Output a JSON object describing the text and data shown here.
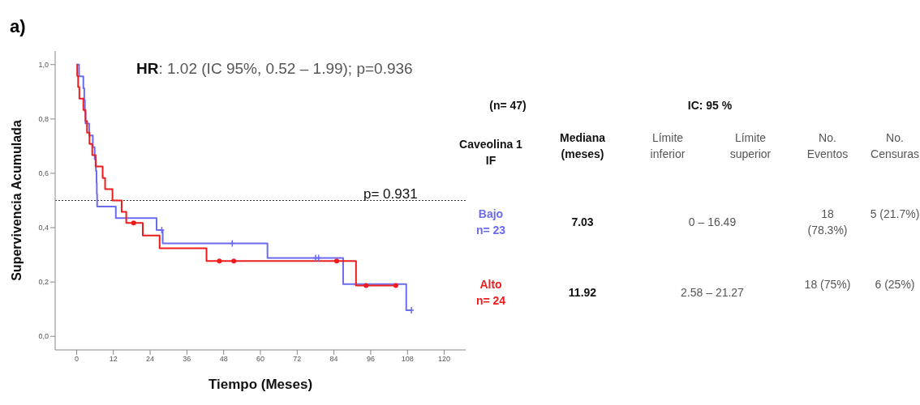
{
  "chart_data": {
    "type": "step",
    "xlabel": "Tiempo (Meses)",
    "ylabel": "Supervivencia Acumulada",
    "annotations": [
      "a)",
      "HR: 1.02 (IC 95%, 0.52 – 1.99); p=0.936",
      "(n= 47)",
      "IC: 95 %",
      "Caveolina 1 IF",
      "Mediana (meses)",
      "Límite inferior",
      "Límite superior",
      "No. Eventos",
      "No. Censuras",
      "n= 23",
      "7.03",
      "0 – 16.49",
      "18 (78.3%)",
      "5 (21.7%)",
      "n= 24",
      "11.92",
      "2.58 – 21.27",
      "18 (75%)",
      "6 (25%)",
      "p= 0.931"
    ],
    "xlim": [
      -7,
      127
    ],
    "xticks": [
      0,
      12,
      24,
      36,
      48,
      60,
      72,
      84,
      96,
      108,
      120
    ],
    "ylim": [
      -0.05,
      1.05
    ],
    "yticks": [
      {
        "value": 0,
        "label": "0,0"
      },
      {
        "value": 0.2,
        "label": "0,2"
      },
      {
        "value": 0.4,
        "label": "0,4"
      },
      {
        "value": 0.6,
        "label": "0,6"
      },
      {
        "value": 0.8,
        "label": "0,8"
      },
      {
        "value": 1,
        "label": "1,0"
      }
    ],
    "ref_lines": [
      {
        "axis": "y",
        "value": 0.5,
        "line_style": "dotted",
        "color": "#333333"
      }
    ],
    "grid": false,
    "legend": false,
    "series": [
      {
        "name": "Bajo",
        "color": "#6b6bf0",
        "x": [
          0,
          0.8,
          2.2,
          2.5,
          2.7,
          2.9,
          4.1,
          5.3,
          5.9,
          6.3,
          6.5,
          6.6,
          6.7,
          12.8,
          26.1,
          28.1,
          62.3,
          87.0,
          107.6,
          109.3
        ],
        "values": [
          1,
          0.957,
          0.913,
          0.87,
          0.826,
          0.783,
          0.739,
          0.696,
          0.652,
          0.609,
          0.565,
          0.522,
          0.478,
          0.435,
          0.391,
          0.342,
          0.288,
          0.192,
          0.096,
          0.096
        ]
      },
      {
        "name": "Alto",
        "color": "#ee1c1c",
        "x": [
          0,
          0.2,
          0.5,
          0.9,
          2.2,
          2.9,
          3.4,
          4.2,
          5.1,
          6.2,
          8.5,
          9.3,
          11.7,
          14.7,
          16.2,
          21.6,
          27.1,
          42.4,
          91.2,
          104.2
        ],
        "values": [
          1,
          0.958,
          0.917,
          0.875,
          0.833,
          0.792,
          0.75,
          0.708,
          0.667,
          0.625,
          0.583,
          0.542,
          0.5,
          0.458,
          0.417,
          0.371,
          0.324,
          0.277,
          0.187,
          0.187
        ]
      },
      {
        "type": "scatter",
        "marker": "cross",
        "color": "#6b6bf0",
        "x": [
          27.8,
          50.8,
          78.0,
          79.0,
          109.3
        ],
        "values": [
          0.391,
          0.342,
          0.288,
          0.288,
          0.096
        ]
      },
      {
        "type": "scatter",
        "marker": "circle",
        "color": "#ee1c1c",
        "x": [
          18.6,
          46.6,
          51.3,
          84.9,
          94.5,
          104.2
        ],
        "values": [
          0.417,
          0.277,
          0.277,
          0.277,
          0.187,
          0.187
        ]
      }
    ]
  }
}
